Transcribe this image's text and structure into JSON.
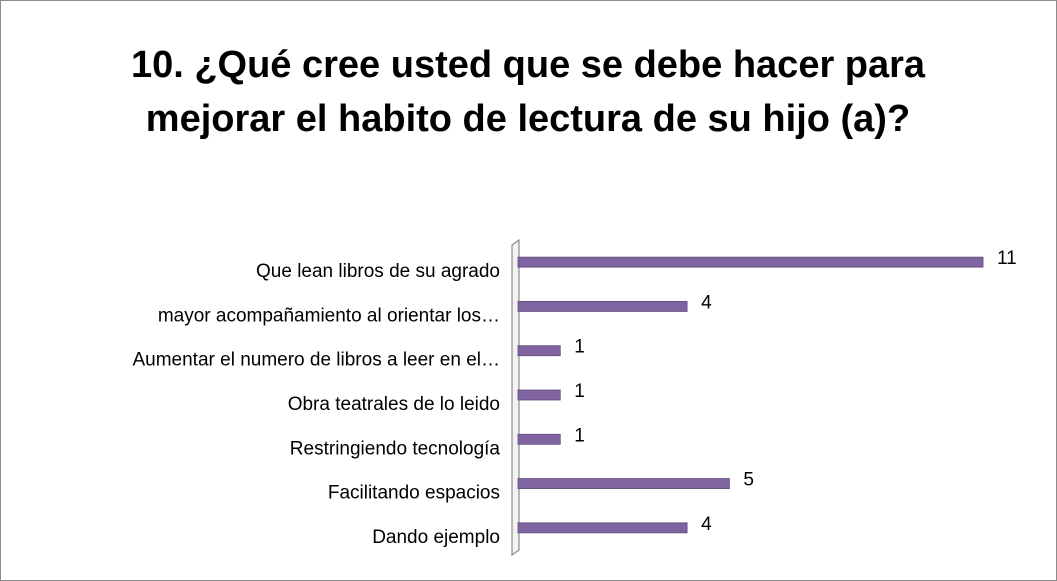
{
  "chart_data": {
    "type": "bar",
    "orientation": "horizontal",
    "title": "10. ¿Qué cree usted que se debe hacer para mejorar el habito de lectura de su hijo (a)?",
    "categories": [
      "Que lean libros de su agrado",
      "mayor acompañamiento al orientar los…",
      "Aumentar el numero de libros a leer en el…",
      "Obra teatrales de lo leido",
      "Restringiendo tecnología",
      "Facilitando espacios",
      "Dando ejemplo"
    ],
    "values": [
      11,
      4,
      1,
      1,
      1,
      5,
      4
    ],
    "color": "#8064a2"
  }
}
